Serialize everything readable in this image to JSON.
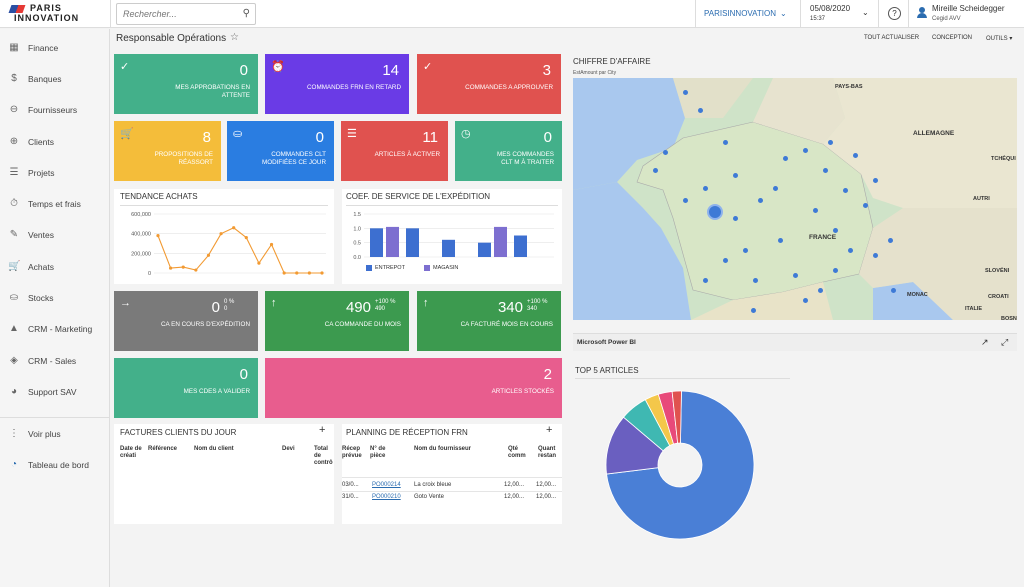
{
  "app": {
    "logo_top": "PARIS",
    "logo_bottom": "INNOVATION"
  },
  "search": {
    "placeholder": "Rechercher..."
  },
  "company": {
    "name": "PARISINNOVATION"
  },
  "session": {
    "date": "05/08/2020",
    "time": "15:37"
  },
  "user": {
    "name": "Mireille Scheidegger",
    "org": "Cegid AVV"
  },
  "sidebar": {
    "items": [
      {
        "label": "Finance",
        "icon": "finance-icon"
      },
      {
        "label": "Banques",
        "icon": "dollar-icon"
      },
      {
        "label": "Fournisseurs",
        "icon": "minus-circle-icon"
      },
      {
        "label": "Clients",
        "icon": "plus-circle-icon"
      },
      {
        "label": "Projets",
        "icon": "projects-icon"
      },
      {
        "label": "Temps et frais",
        "icon": "stopwatch-icon"
      },
      {
        "label": "Ventes",
        "icon": "edit-icon"
      },
      {
        "label": "Achats",
        "icon": "cart-icon"
      },
      {
        "label": "Stocks",
        "icon": "truck-icon"
      },
      {
        "label": "CRM - Marketing",
        "icon": "megaphone-icon"
      },
      {
        "label": "CRM - Sales",
        "icon": "tag-icon"
      },
      {
        "label": "Support SAV",
        "icon": "headset-icon"
      },
      {
        "label": "Voir plus",
        "icon": "grid-icon"
      },
      {
        "label": "Tableau de bord",
        "icon": "dashboard-icon"
      }
    ]
  },
  "page": {
    "title": "Responsable Opérations",
    "actions": [
      "TOUT ACTUALISER",
      "CONCEPTION",
      "OUTILS"
    ]
  },
  "tiles": [
    {
      "label": "MES APPROBATIONS EN ATTENTE",
      "value": "0",
      "color": "#43b08a",
      "icon": "check-circle-icon"
    },
    {
      "label": "COMMANDES FRN EN RETARD",
      "value": "14",
      "color": "#6a3be6",
      "icon": "alarm-icon"
    },
    {
      "label": "COMMANDES A APPROUVER",
      "value": "3",
      "color": "#e0524f",
      "icon": "check-circle-icon"
    },
    {
      "label": "PROPOSITIONS DE RÉASSORT",
      "value": "8",
      "color": "#f4bd3a",
      "icon": "cart-icon"
    },
    {
      "label": "COMMANDES CLT MODIFIÉES CE JOUR",
      "value": "0",
      "color": "#2a7de1",
      "icon": "truck-icon"
    },
    {
      "label": "ARTICLES À ACTIVER",
      "value": "11",
      "color": "#e0524f",
      "icon": "list-icon"
    },
    {
      "label": "MES COMMANDES CLT M À TRAITER",
      "value": "0",
      "color": "#43b08a",
      "icon": "clock-icon"
    },
    {
      "label": "CA EN COURS D'EXPÉDITION",
      "value": "0",
      "sub1": "0 %",
      "sub2": "0",
      "color": "#7a7a7a",
      "icon": "arrow-right-icon"
    },
    {
      "label": "CA COMMANDE DU MOIS",
      "value": "490",
      "sub1": "+100 %",
      "sub2": "490",
      "color": "#3c9a4f",
      "icon": "arrow-up-icon"
    },
    {
      "label": "CA FACTURÉ MOIS EN COURS",
      "value": "340",
      "sub1": "+100 %",
      "sub2": "340",
      "color": "#3c9a4f",
      "icon": "arrow-up-icon"
    },
    {
      "label": "MES CDES A VALIDER",
      "value": "0",
      "color": "#43b08a"
    },
    {
      "label": "ARTICLES STOCKÉS",
      "value": "2",
      "color": "#e85d8e"
    }
  ],
  "sections": {
    "tendance": "TENDANCE ACHATS",
    "coef": "COEF. DE SERVICE DE L'EXPÉDITION",
    "ca": "CHIFFRE D'AFFAIRE",
    "ca_sub": "EstAmount par City",
    "powerbi": "Microsoft Power BI",
    "top5": "TOP 5 ARTICLES",
    "factures": "FACTURES CLIENTS DU JOUR",
    "planning": "PLANNING DE RÉCEPTION FRN"
  },
  "chart_data": [
    {
      "type": "line",
      "title": "TENDANCE ACHATS",
      "ylim": [
        0,
        600000
      ],
      "yticks": [
        "600,000",
        "400,000",
        "200,000",
        "0"
      ],
      "values": [
        380000,
        50000,
        60000,
        30000,
        180000,
        400000,
        460000,
        360000,
        100000,
        290000,
        0,
        0,
        0,
        0
      ]
    },
    {
      "type": "bar",
      "title": "COEF. DE SERVICE DE L'EXPÉDITION",
      "ylim": [
        0,
        1.5
      ],
      "yticks": [
        "1.5",
        "1.0",
        "0.5",
        "0.0"
      ],
      "series": [
        {
          "name": "ENTREPOT",
          "color": "#3d6fd0",
          "values": [
            1.0,
            1.0,
            0.6,
            0.5,
            0.75
          ]
        },
        {
          "name": "MAGASIN",
          "color": "#7d6fd0",
          "values": [
            1.05,
            0,
            0,
            1.05,
            0
          ]
        }
      ]
    },
    {
      "type": "pie",
      "title": "TOP 5 ARTICLES",
      "values": [
        72,
        13,
        6,
        3,
        3,
        2
      ],
      "colors": [
        "#4a7fd6",
        "#6a5fc0",
        "#3fb8b2",
        "#f4c74a",
        "#e84a7a",
        "#e0524f"
      ]
    }
  ],
  "map": {
    "labels": [
      "PAYS-BAS",
      "ALLEMAGNE",
      "FRANCE",
      "TCHÉQUI",
      "AUTRI",
      "SLOVÉNI",
      "CROATI",
      "ITALIE",
      "BOSNIE",
      "MONAC"
    ]
  },
  "factures": {
    "headers": [
      "Date de créati",
      "Référence",
      "Nom du client",
      "Devi",
      "Total de contrô"
    ]
  },
  "planning": {
    "headers": [
      "Récep prévue",
      "N° de pièce",
      "Nom du fournisseur",
      "Qté comm",
      "Quant restan"
    ],
    "rows": [
      {
        "date": "03/0...",
        "piece": "PO000214",
        "fournisseur": "La croix bleue",
        "qte": "12,00...",
        "reste": "12,00..."
      },
      {
        "date": "31/0...",
        "piece": "PO000210",
        "fournisseur": "Goto Vente",
        "qte": "12,00...",
        "reste": "12,00..."
      }
    ]
  }
}
